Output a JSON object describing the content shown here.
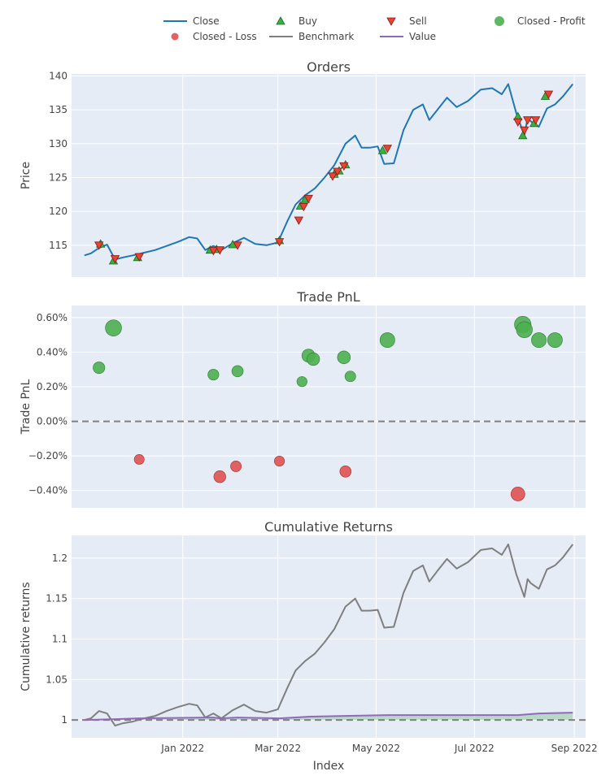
{
  "chart_data": {
    "type": "line",
    "x_axis": {
      "title": "Index",
      "tick_labels": [
        "Jan 2022",
        "Mar 2022",
        "May 2022",
        "Jul 2022",
        "Sep 2022"
      ]
    },
    "legend": {
      "placement": "top",
      "entries": [
        {
          "name": "Close",
          "symbol": "line",
          "color": "#1f77b4"
        },
        {
          "name": "Buy",
          "symbol": "triangle-up",
          "color": "#37b13f"
        },
        {
          "name": "Sell",
          "symbol": "triangle-down",
          "color": "#ea4335"
        },
        {
          "name": "Closed - Profit",
          "symbol": "circle",
          "color": "#4caf50"
        },
        {
          "name": "Closed - Loss",
          "symbol": "circle",
          "color": "#e05252"
        },
        {
          "name": "Benchmark",
          "symbol": "line",
          "color": "#7f7f7f"
        },
        {
          "name": "Value",
          "symbol": "line",
          "color": "#9467bd"
        }
      ]
    },
    "panels": [
      {
        "title": "Orders",
        "ylabel": "Price",
        "ylim": [
          110.3,
          140.3
        ],
        "y_ticks": [
          115,
          120,
          125,
          130,
          135,
          140
        ],
        "y_tick_labels": [
          "115",
          "120",
          "125",
          "130",
          "135",
          "140"
        ],
        "close_series": {
          "name": "Close",
          "x": [
            "2021-11-01",
            "2021-11-05",
            "2021-11-10",
            "2021-11-15",
            "2021-11-20",
            "2021-11-25",
            "2021-12-01",
            "2021-12-08",
            "2021-12-15",
            "2021-12-22",
            "2021-12-29",
            "2022-01-05",
            "2022-01-10",
            "2022-01-15",
            "2022-01-20",
            "2022-01-25",
            "2022-02-01",
            "2022-02-08",
            "2022-02-15",
            "2022-02-22",
            "2022-03-01",
            "2022-03-07",
            "2022-03-12",
            "2022-03-18",
            "2022-03-24",
            "2022-03-30",
            "2022-04-05",
            "2022-04-12",
            "2022-04-18",
            "2022-04-22",
            "2022-04-27",
            "2022-05-02",
            "2022-05-06",
            "2022-05-12",
            "2022-05-18",
            "2022-05-24",
            "2022-05-30",
            "2022-06-03",
            "2022-06-08",
            "2022-06-14",
            "2022-06-20",
            "2022-06-27",
            "2022-07-05",
            "2022-07-12",
            "2022-07-18",
            "2022-07-22",
            "2022-07-27",
            "2022-08-01",
            "2022-08-03",
            "2022-08-05",
            "2022-08-10",
            "2022-08-15",
            "2022-08-20",
            "2022-08-25",
            "2022-08-31"
          ],
          "y": [
            113.5,
            113.8,
            114.6,
            115.1,
            112.9,
            113.2,
            113.5,
            113.9,
            114.3,
            114.9,
            115.5,
            116.2,
            116.0,
            114.3,
            114.9,
            114.3,
            115.3,
            116.1,
            115.2,
            115.0,
            115.4,
            118.6,
            121.0,
            122.4,
            123.4,
            125.0,
            126.8,
            130.0,
            131.2,
            129.4,
            129.4,
            129.6,
            127.0,
            127.1,
            132.0,
            135.0,
            135.8,
            133.5,
            135.0,
            136.8,
            135.4,
            136.3,
            138.0,
            138.2,
            137.3,
            138.8,
            134.5,
            131.2,
            133.8,
            133.3,
            132.5,
            135.2,
            135.8,
            137.0,
            138.8
          ]
        },
        "buy_points": {
          "name": "Buy",
          "x": [
            "2021-11-11",
            "2021-11-19",
            "2021-12-04",
            "2022-01-18",
            "2022-01-22",
            "2022-02-01",
            "2022-03-02",
            "2022-03-15",
            "2022-03-18",
            "2022-04-05",
            "2022-04-08",
            "2022-04-12",
            "2022-05-05",
            "2022-07-28",
            "2022-07-31",
            "2022-08-07",
            "2022-08-14"
          ],
          "y": [
            115.2,
            112.7,
            113.2,
            114.3,
            114.4,
            115.1,
            115.7,
            120.8,
            121.8,
            125.5,
            126.0,
            126.9,
            129.0,
            134.0,
            131.2,
            133.0,
            137.0
          ]
        },
        "sell_points": {
          "name": "Sell",
          "x": [
            "2021-11-10",
            "2021-11-20",
            "2021-12-05",
            "2022-01-20",
            "2022-01-24",
            "2022-02-04",
            "2022-03-02",
            "2022-03-14",
            "2022-03-17",
            "2022-03-20",
            "2022-04-04",
            "2022-04-07",
            "2022-04-11",
            "2022-05-08",
            "2022-07-28",
            "2022-08-01",
            "2022-08-03",
            "2022-08-08",
            "2022-08-16"
          ],
          "y": [
            115.0,
            113.0,
            113.3,
            114.2,
            114.3,
            115.0,
            115.5,
            118.7,
            120.7,
            121.9,
            125.2,
            125.9,
            126.7,
            129.3,
            133.2,
            132.0,
            133.5,
            133.5,
            137.3
          ]
        }
      },
      {
        "title": "Trade PnL",
        "ylabel": "Trade PnL",
        "ylim": [
          -0.5,
          0.67
        ],
        "y_ticks": [
          -0.4,
          -0.2,
          0.0,
          0.2,
          0.4,
          0.6
        ],
        "y_tick_labels": [
          "−0.40%",
          "−0.20%",
          "0.00%",
          "0.20%",
          "0.40%",
          "0.60%"
        ],
        "zero_line": true,
        "closed_profit": {
          "name": "Closed - Profit",
          "x": [
            "2021-11-10",
            "2021-11-19",
            "2022-01-20",
            "2022-02-04",
            "2022-03-16",
            "2022-03-20",
            "2022-03-23",
            "2022-04-11",
            "2022-04-15",
            "2022-05-08",
            "2022-07-31",
            "2022-08-01",
            "2022-08-10",
            "2022-08-20"
          ],
          "y": [
            0.31,
            0.54,
            0.27,
            0.29,
            0.23,
            0.38,
            0.36,
            0.37,
            0.26,
            0.47,
            0.56,
            0.53,
            0.47,
            0.47
          ]
        },
        "closed_loss": {
          "name": "Closed - Loss",
          "x": [
            "2021-12-05",
            "2022-01-24",
            "2022-02-03",
            "2022-03-02",
            "2022-04-12",
            "2022-07-28"
          ],
          "y": [
            -0.22,
            -0.32,
            -0.26,
            -0.23,
            -0.29,
            -0.42
          ]
        }
      },
      {
        "title": "Cumulative Returns",
        "ylabel": "Cumulative returns",
        "ylim": [
          0.978,
          1.228
        ],
        "y_ticks": [
          1.0,
          1.05,
          1.1,
          1.15,
          1.2
        ],
        "y_tick_labels": [
          "1",
          "1.05",
          "1.1",
          "1.15",
          "1.2"
        ],
        "baseline_value": 1.0,
        "benchmark": {
          "name": "Benchmark",
          "x": [
            "2021-11-01",
            "2021-11-05",
            "2021-11-10",
            "2021-11-15",
            "2021-11-20",
            "2021-11-25",
            "2021-12-01",
            "2021-12-08",
            "2021-12-15",
            "2021-12-22",
            "2021-12-29",
            "2022-01-05",
            "2022-01-10",
            "2022-01-15",
            "2022-01-20",
            "2022-01-25",
            "2022-02-01",
            "2022-02-08",
            "2022-02-15",
            "2022-02-22",
            "2022-03-01",
            "2022-03-07",
            "2022-03-12",
            "2022-03-18",
            "2022-03-24",
            "2022-03-30",
            "2022-04-05",
            "2022-04-12",
            "2022-04-18",
            "2022-04-22",
            "2022-04-27",
            "2022-05-02",
            "2022-05-06",
            "2022-05-12",
            "2022-05-18",
            "2022-05-24",
            "2022-05-30",
            "2022-06-03",
            "2022-06-08",
            "2022-06-14",
            "2022-06-20",
            "2022-06-27",
            "2022-07-05",
            "2022-07-12",
            "2022-07-18",
            "2022-07-22",
            "2022-07-27",
            "2022-08-01",
            "2022-08-03",
            "2022-08-05",
            "2022-08-10",
            "2022-08-15",
            "2022-08-20",
            "2022-08-25",
            "2022-08-31"
          ],
          "y": [
            1.0,
            1.002,
            1.011,
            1.008,
            0.993,
            0.996,
            0.998,
            1.002,
            1.005,
            1.011,
            1.016,
            1.02,
            1.018,
            1.003,
            1.008,
            1.002,
            1.012,
            1.019,
            1.011,
            1.009,
            1.013,
            1.04,
            1.061,
            1.073,
            1.082,
            1.096,
            1.112,
            1.14,
            1.15,
            1.135,
            1.135,
            1.136,
            1.114,
            1.115,
            1.157,
            1.184,
            1.191,
            1.171,
            1.184,
            1.199,
            1.187,
            1.195,
            1.21,
            1.212,
            1.204,
            1.217,
            1.18,
            1.152,
            1.174,
            1.169,
            1.162,
            1.186,
            1.191,
            1.201,
            1.217
          ]
        },
        "value": {
          "name": "Value",
          "x": [
            "2021-11-01",
            "2021-11-20",
            "2021-12-05",
            "2022-01-20",
            "2022-01-24",
            "2022-02-04",
            "2022-03-02",
            "2022-03-20",
            "2022-04-12",
            "2022-05-08",
            "2022-07-28",
            "2022-08-10",
            "2022-08-31"
          ],
          "y": [
            1.0,
            1.001,
            1.002,
            1.003,
            1.002,
            1.003,
            1.002,
            1.004,
            1.005,
            1.006,
            1.006,
            1.008,
            1.009
          ]
        }
      }
    ]
  }
}
